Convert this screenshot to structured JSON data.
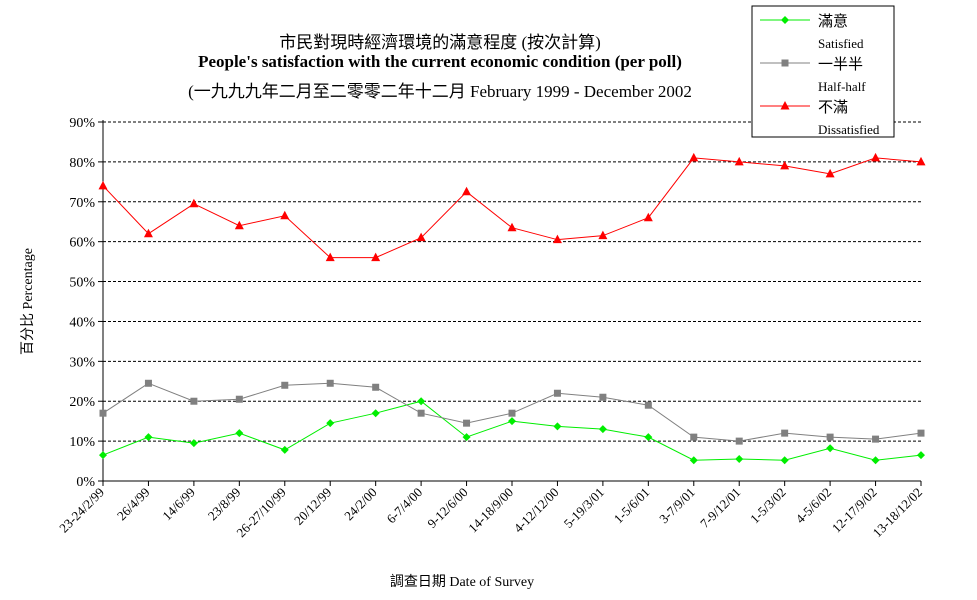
{
  "title_zh": "市民對現時經濟環境的滿意程度 (按次計算)",
  "title_en": "People's satisfaction with the current economic condition  (per poll)",
  "subtitle": "(一九九九年二月至二零零二年十二月 February 1999 - December 2002",
  "colors": {
    "satisfied": "#00ee00",
    "half": "#808080",
    "dissatisfied": "#ff0000",
    "grid": "#000000"
  },
  "chart_data": {
    "type": "line",
    "title": "市民對現時經濟環境的滿意程度 (按次計算) People's satisfaction with the current economic condition  (per poll)",
    "xlabel": "調查日期 Date of Survey",
    "ylabel": "百分比 Percentage",
    "ylim": [
      0,
      90
    ],
    "yticks": [
      "0%",
      "10%",
      "20%",
      "30%",
      "40%",
      "50%",
      "60%",
      "70%",
      "80%",
      "90%"
    ],
    "grid": "horizontal dashed",
    "legend_position": "top-right",
    "categories": [
      "23-24/2/99",
      "26/4/99",
      "14/6/99",
      "23/8/99",
      "26-27/10/99",
      "20/12/99",
      "24/2/00",
      "6-7/4/00",
      "9-12/6/00",
      "14-18/9/00",
      "4-12/12/00",
      "5-19/3/01",
      "1-5/6/01",
      "3-7/9/01",
      "7-9/12/01",
      "1-5/3/02",
      "4-5/6/02",
      "12-17/9/02",
      "13-18/12/02"
    ],
    "series": [
      {
        "name": "滿意",
        "name_en": "Satisfied",
        "color": "#00ee00",
        "marker": "diamond",
        "values": [
          6.5,
          11,
          9.5,
          12,
          7.8,
          14.5,
          17,
          20,
          11,
          15,
          13.7,
          13,
          11,
          5.2,
          5.5,
          5.2,
          8.2,
          5.2,
          6.5
        ]
      },
      {
        "name": "一半半",
        "name_en": "Half-half",
        "color": "#808080",
        "marker": "square",
        "values": [
          17,
          24.5,
          20,
          20.5,
          24,
          24.5,
          23.5,
          17,
          14.5,
          17,
          22,
          21,
          19,
          11,
          10,
          12,
          11,
          10.5,
          12
        ]
      },
      {
        "name": "不滿",
        "name_en": "Dissatisfied",
        "color": "#ff0000",
        "marker": "triangle",
        "values": [
          74,
          62,
          69.5,
          64,
          66.5,
          56,
          56,
          61,
          72.5,
          63.5,
          60.5,
          61.5,
          66,
          81,
          80,
          79,
          77,
          81,
          80
        ]
      }
    ]
  }
}
